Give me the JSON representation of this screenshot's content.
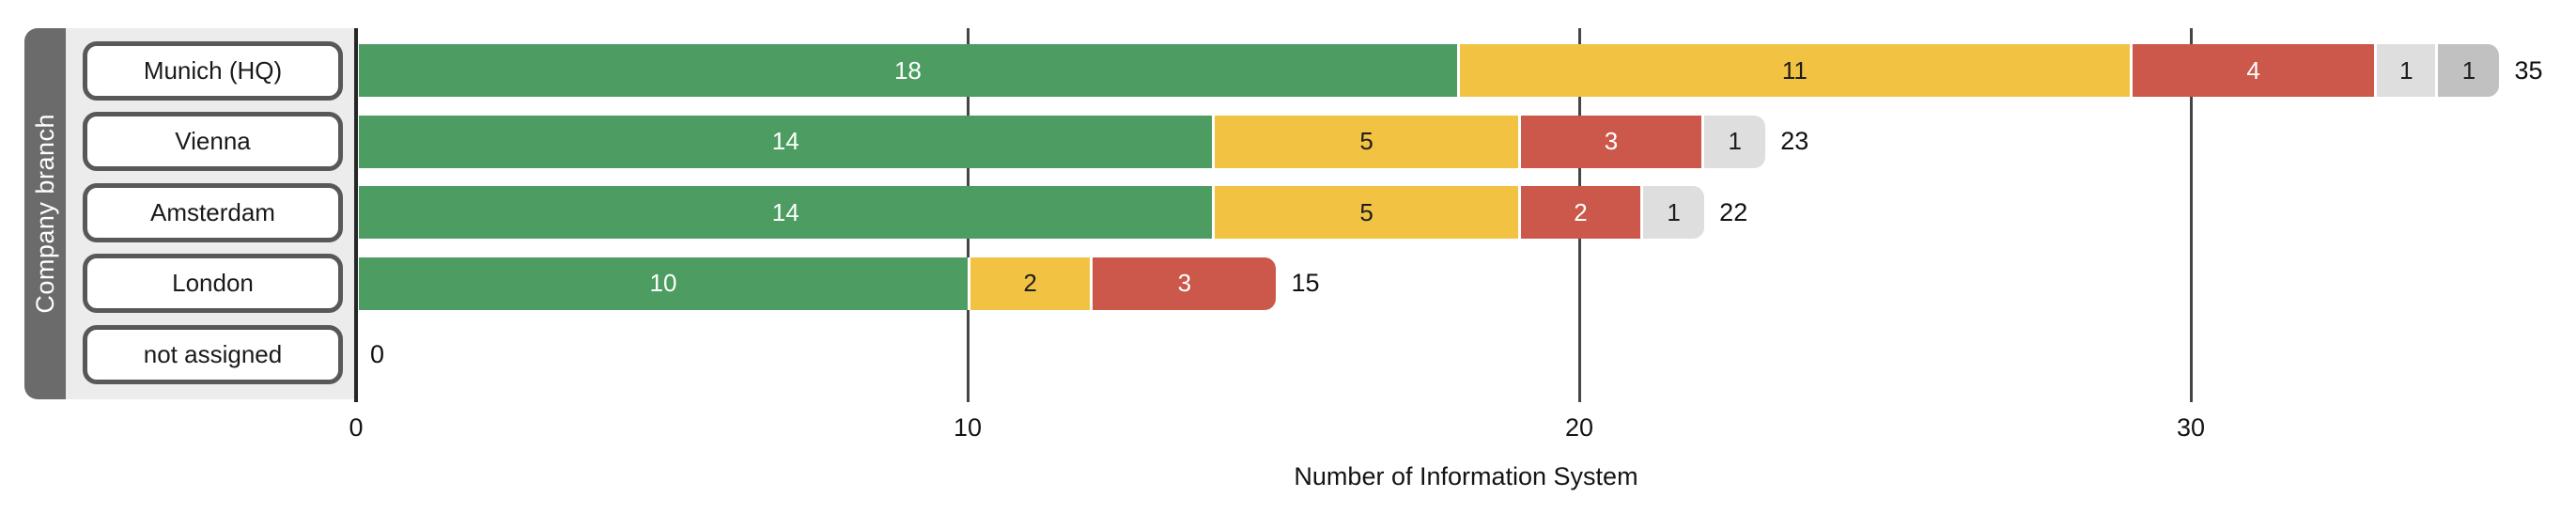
{
  "chart": {
    "y_axis_label": "Company branch",
    "x_axis_label": "Number of Information System",
    "x_ticks": [
      {
        "value": 0,
        "label": "0"
      },
      {
        "value": 10,
        "label": "10"
      },
      {
        "value": 20,
        "label": "20"
      },
      {
        "value": 30,
        "label": "30"
      }
    ],
    "colors": {
      "green": "#4d9d62",
      "yellow": "#f2c243",
      "red": "#cb584a",
      "light_gray": "#dedede",
      "dark_gray": "#c1c1c1",
      "panel_bg": "#ececec",
      "panel_band": "#6b6b6b"
    },
    "rows": [
      {
        "label": "Munich (HQ)",
        "total_label": "35",
        "segments": [
          {
            "value": 18,
            "label": "18",
            "color": "#4d9d62",
            "text_color": "#ffffff"
          },
          {
            "value": 11,
            "label": "11",
            "color": "#f2c243",
            "text_color": "#1e1e1e"
          },
          {
            "value": 4,
            "label": "4",
            "color": "#cb584a",
            "text_color": "#ffffff"
          },
          {
            "value": 1,
            "label": "1",
            "color": "#dedede",
            "text_color": "#1e1e1e"
          },
          {
            "value": 1,
            "label": "1",
            "color": "#c1c1c1",
            "text_color": "#1e1e1e"
          }
        ]
      },
      {
        "label": "Vienna",
        "total_label": "23",
        "segments": [
          {
            "value": 14,
            "label": "14",
            "color": "#4d9d62",
            "text_color": "#ffffff"
          },
          {
            "value": 5,
            "label": "5",
            "color": "#f2c243",
            "text_color": "#1e1e1e"
          },
          {
            "value": 3,
            "label": "3",
            "color": "#cb584a",
            "text_color": "#ffffff"
          },
          {
            "value": 1,
            "label": "1",
            "color": "#dedede",
            "text_color": "#1e1e1e"
          }
        ]
      },
      {
        "label": "Amsterdam",
        "total_label": "22",
        "segments": [
          {
            "value": 14,
            "label": "14",
            "color": "#4d9d62",
            "text_color": "#ffffff"
          },
          {
            "value": 5,
            "label": "5",
            "color": "#f2c243",
            "text_color": "#1e1e1e"
          },
          {
            "value": 2,
            "label": "2",
            "color": "#cb584a",
            "text_color": "#ffffff"
          },
          {
            "value": 1,
            "label": "1",
            "color": "#dedede",
            "text_color": "#1e1e1e"
          }
        ]
      },
      {
        "label": "London",
        "total_label": "15",
        "segments": [
          {
            "value": 10,
            "label": "10",
            "color": "#4d9d62",
            "text_color": "#ffffff"
          },
          {
            "value": 2,
            "label": "2",
            "color": "#f2c243",
            "text_color": "#1e1e1e"
          },
          {
            "value": 3,
            "label": "3",
            "color": "#cb584a",
            "text_color": "#ffffff"
          }
        ]
      },
      {
        "label": "not assigned",
        "total_label": "0",
        "segments": []
      }
    ]
  },
  "chart_data": {
    "type": "bar",
    "orientation": "horizontal",
    "stacked": true,
    "categories": [
      "Munich (HQ)",
      "Vienna",
      "Amsterdam",
      "London",
      "not assigned"
    ],
    "series": [
      {
        "name": "segment-green",
        "color": "#4d9d62",
        "values": [
          18,
          14,
          14,
          10,
          0
        ]
      },
      {
        "name": "segment-yellow",
        "color": "#f2c243",
        "values": [
          11,
          5,
          5,
          2,
          0
        ]
      },
      {
        "name": "segment-red",
        "color": "#cb584a",
        "values": [
          4,
          3,
          2,
          3,
          0
        ]
      },
      {
        "name": "segment-light-gray",
        "color": "#dedede",
        "values": [
          1,
          1,
          1,
          0,
          0
        ]
      },
      {
        "name": "segment-dark-gray",
        "color": "#c1c1c1",
        "values": [
          1,
          0,
          0,
          0,
          0
        ]
      }
    ],
    "totals": [
      35,
      23,
      22,
      15,
      0
    ],
    "title": "",
    "xlabel": "Number of Information System",
    "ylabel": "Company branch",
    "xlim": [
      0,
      36.3
    ],
    "x_ticks": [
      0,
      10,
      20,
      30
    ],
    "grid": "vertical-on",
    "legend": "none"
  }
}
